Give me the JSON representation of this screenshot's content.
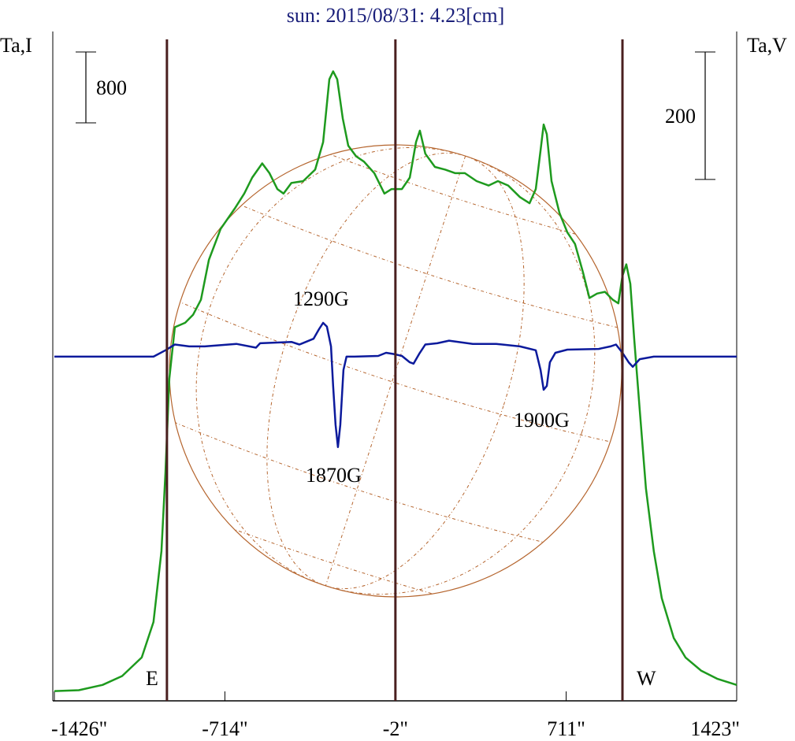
{
  "chart_data": {
    "type": "line",
    "title": "sun: 2015/08/31: 4.23[cm]",
    "y_label": "Ta,I",
    "y2_label": "Ta,V",
    "xlim": [
      -1426,
      1423
    ],
    "xticks": [
      {
        "value": -1426,
        "label": "-1426\""
      },
      {
        "value": -714,
        "label": "-714\""
      },
      {
        "value": -2,
        "label": "-2\""
      },
      {
        "value": 711,
        "label": "711\""
      },
      {
        "value": 1423,
        "label": "1423\""
      }
    ],
    "ylim": [
      0,
      7560
    ],
    "y2lim": [
      -540,
      510
    ],
    "scale_bars": [
      {
        "value": 800,
        "label": "800"
      },
      {
        "value": 200,
        "label": "200",
        "axis": "y2"
      }
    ],
    "vlines": [
      -956,
      -2,
      946
    ],
    "vline_color": "#4a1f1f",
    "labels": [
      "E",
      "W"
    ],
    "annotations": [
      "1290G",
      "1870G",
      "1900G"
    ],
    "series": [
      {
        "color": "#1e9a1e",
        "x": [
          -1426,
          -1324,
          -1225,
          -1143,
          -1061,
          -1012,
          -979,
          -962,
          -946,
          -923,
          -880,
          -847,
          -814,
          -781,
          -732,
          -673,
          -633,
          -600,
          -558,
          -528,
          -495,
          -469,
          -436,
          -387,
          -337,
          -304,
          -278,
          -262,
          -245,
          -222,
          -199,
          -166,
          -133,
          -90,
          -48,
          -18,
          25,
          58,
          84,
          100,
          123,
          163,
          206,
          248,
          288,
          337,
          387,
          426,
          469,
          518,
          558,
          584,
          604,
          617,
          630,
          650,
          683,
          716,
          748,
          781,
          808,
          840,
          873,
          906,
          929,
          946,
          962,
          979,
          995,
          1018,
          1044,
          1077,
          1110,
          1160,
          1209,
          1275,
          1341,
          1423
        ],
        "values": [
          110,
          120,
          180,
          280,
          490,
          890,
          1690,
          2580,
          3640,
          4220,
          4270,
          4360,
          4530,
          4980,
          5330,
          5560,
          5730,
          5910,
          6070,
          5960,
          5780,
          5730,
          5850,
          5870,
          6000,
          6310,
          7020,
          7110,
          7020,
          6580,
          6270,
          6150,
          6090,
          5960,
          5730,
          5780,
          5780,
          5910,
          6310,
          6440,
          6180,
          6030,
          6000,
          5960,
          5960,
          5870,
          5820,
          5870,
          5820,
          5690,
          5620,
          5780,
          6220,
          6510,
          6400,
          5870,
          5510,
          5290,
          5160,
          4840,
          4550,
          4600,
          4620,
          4530,
          4490,
          4800,
          4930,
          4710,
          4090,
          3290,
          2400,
          1690,
          1160,
          710,
          490,
          340,
          250,
          180
        ]
      },
      {
        "color": "#0c1a9c",
        "axis": "y2",
        "x": [
          -1426,
          -1012,
          -962,
          -923,
          -863,
          -798,
          -666,
          -584,
          -567,
          -436,
          -403,
          -344,
          -321,
          -304,
          -288,
          -271,
          -262,
          -252,
          -242,
          -232,
          -219,
          -206,
          -173,
          -74,
          -41,
          -8,
          25,
          58,
          74,
          97,
          123,
          173,
          222,
          321,
          419,
          518,
          584,
          604,
          617,
          630,
          643,
          666,
          716,
          847,
          896,
          919,
          946,
          972,
          989,
          1018,
          1077,
          1209,
          1423
        ],
        "values": [
          0,
          0,
          10,
          19,
          16,
          16,
          20,
          14,
          21,
          23,
          19,
          28,
          43,
          53,
          47,
          16,
          -46,
          -107,
          -142,
          -107,
          -21,
          0,
          0,
          1,
          6,
          4,
          1,
          -9,
          -11,
          4,
          19,
          21,
          25,
          20,
          20,
          16,
          10,
          -21,
          -52,
          -46,
          -9,
          6,
          11,
          12,
          16,
          19,
          6,
          -9,
          -16,
          -4,
          0,
          0,
          0
        ]
      }
    ]
  }
}
